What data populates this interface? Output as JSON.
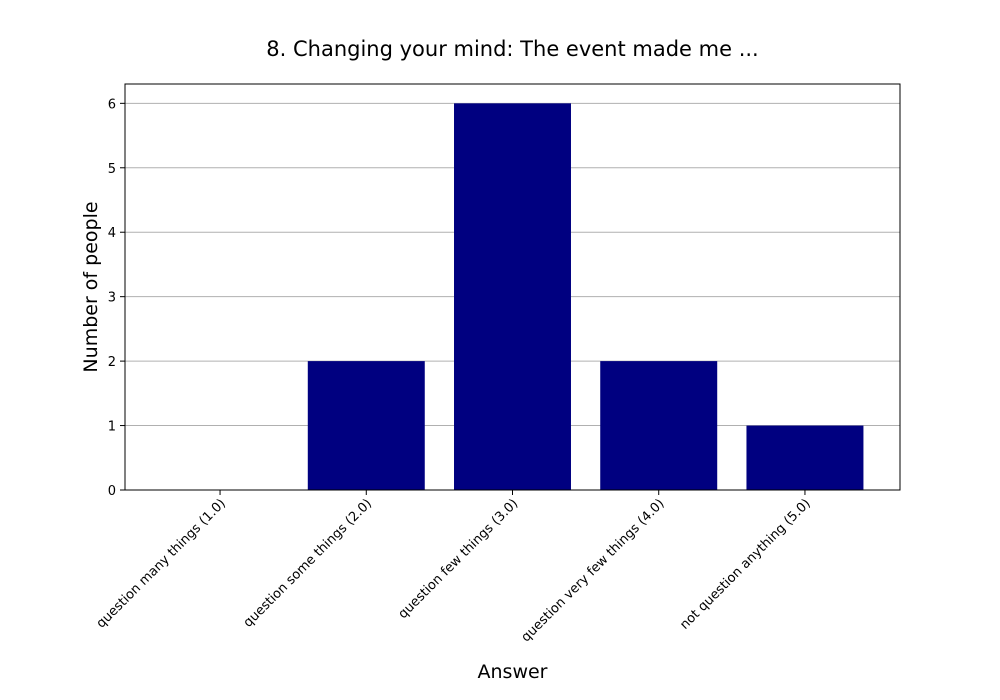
{
  "chart_data": {
    "type": "bar",
    "title": "8. Changing your mind: The event made me ...",
    "xlabel": "Answer",
    "ylabel": "Number of people",
    "categories": [
      "question many things (1.0)",
      "question some things (2.0)",
      "question few things (3.0)",
      "question very few things (4.0)",
      "not question anything (5.0)"
    ],
    "values": [
      0,
      2,
      6,
      2,
      1
    ],
    "ylim": [
      0,
      6.3
    ],
    "yticks": [
      0,
      1,
      2,
      3,
      4,
      5,
      6
    ],
    "grid": "y-axis",
    "bar_color": "#000080",
    "grid_color": "#b0b0b0"
  }
}
